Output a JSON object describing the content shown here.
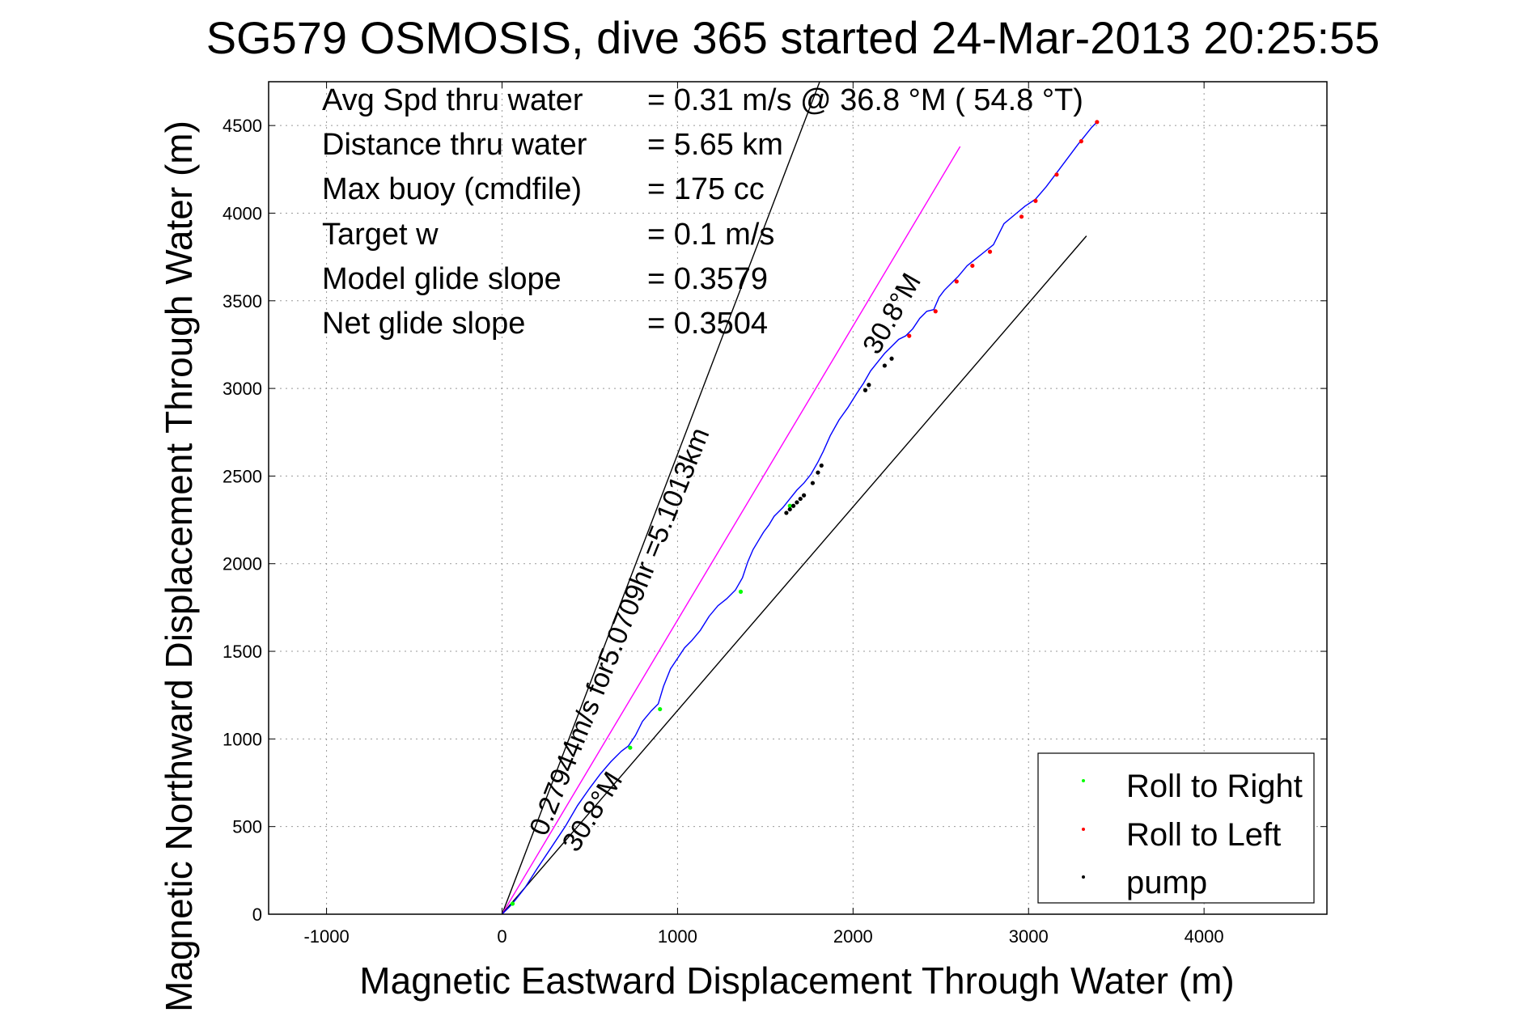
{
  "chart_data": {
    "type": "line",
    "title": "SG579 OSMOSIS, dive 365 started 24-Mar-2013 20:25:55",
    "xlabel": "Magnetic Eastward Displacement Through Water (m)",
    "ylabel": "Magnetic Northward Displacement Through Water (m)",
    "xlim": [
      -1330,
      4700
    ],
    "ylim": [
      0,
      4750
    ],
    "xticks": [
      -1000,
      0,
      1000,
      2000,
      3000,
      4000
    ],
    "yticks": [
      0,
      500,
      1000,
      1500,
      2000,
      2500,
      3000,
      3500,
      4000,
      4500
    ],
    "grid": true,
    "info_lines": [
      {
        "label": "Avg Spd thru water",
        "value": "=  0.31 m/s @  36.8 °M ( 54.8 °T)"
      },
      {
        "label": "Distance thru water",
        "value": "=  5.65 km"
      },
      {
        "label": "Max buoy (cmdfile)",
        "value": "= 175 cc"
      },
      {
        "label": "Target w",
        "value": "= 0.1 m/s"
      },
      {
        "label": "Model glide slope",
        "value": "= 0.3579"
      },
      {
        "label": "Net glide slope",
        "value": "= 0.3504"
      }
    ],
    "annotations": {
      "heading_top": "30.8°M",
      "heading_bottom": "30.8°M",
      "speed_text": "0.27944m/s for5.0709hr =5.1013km"
    },
    "reference_lines": [
      {
        "name": "left_bound",
        "color": "#000000",
        "x": [
          0,
          1810
        ],
        "y": [
          0,
          4750
        ]
      },
      {
        "name": "heading",
        "color": "#ff00ff",
        "x": [
          0,
          2610
        ],
        "y": [
          0,
          4380
        ]
      },
      {
        "name": "right_bound",
        "color": "#000000",
        "x": [
          0,
          3330
        ],
        "y": [
          0,
          3870
        ]
      }
    ],
    "track": {
      "color": "#0000ff",
      "x": [
        0,
        40,
        75,
        130,
        200,
        280,
        360,
        430,
        500,
        560,
        620,
        680,
        720,
        760,
        800,
        850,
        890,
        920,
        960,
        1000,
        1040,
        1080,
        1130,
        1180,
        1230,
        1280,
        1330,
        1370,
        1400,
        1430,
        1460,
        1490,
        1520,
        1550,
        1580,
        1600,
        1640,
        1680,
        1720,
        1760,
        1800,
        1830,
        1870,
        1920,
        1970,
        2020,
        2060,
        2100,
        2140,
        2180,
        2220,
        2260,
        2300,
        2340,
        2380,
        2420,
        2460,
        2490,
        2520,
        2560,
        2600,
        2650,
        2700,
        2750,
        2800,
        2860,
        2920,
        2980,
        3040,
        3100,
        3160,
        3220,
        3280,
        3320,
        3360,
        3390
      ],
      "y": [
        0,
        40,
        80,
        150,
        260,
        380,
        500,
        620,
        720,
        800,
        870,
        930,
        960,
        1020,
        1100,
        1160,
        1200,
        1300,
        1400,
        1460,
        1520,
        1560,
        1620,
        1700,
        1760,
        1800,
        1850,
        1920,
        2010,
        2080,
        2130,
        2180,
        2220,
        2270,
        2300,
        2320,
        2370,
        2420,
        2460,
        2510,
        2580,
        2640,
        2730,
        2820,
        2890,
        2970,
        3030,
        3100,
        3150,
        3200,
        3240,
        3280,
        3300,
        3340,
        3400,
        3440,
        3450,
        3520,
        3560,
        3600,
        3640,
        3700,
        3740,
        3780,
        3820,
        3940,
        3990,
        4040,
        4080,
        4150,
        4230,
        4310,
        4390,
        4440,
        4490,
        4520
      ]
    },
    "series": [
      {
        "name": "Roll to Right",
        "color": "#00ff00",
        "x": [
          60,
          730,
          900,
          1360,
          1640
        ],
        "y": [
          60,
          950,
          1170,
          1840,
          2330
        ]
      },
      {
        "name": "Roll to Left",
        "color": "#ff0000",
        "x": [
          2320,
          2470,
          2590,
          2680,
          2780,
          2960,
          3040,
          3160,
          3300,
          3390
        ],
        "y": [
          3300,
          3440,
          3610,
          3700,
          3780,
          3980,
          4070,
          4220,
          4410,
          4520
        ]
      },
      {
        "name": "pump",
        "color": "#000000",
        "x": [
          1620,
          1640,
          1660,
          1680,
          1700,
          1720,
          1770,
          1800,
          1820,
          2070,
          2090,
          2180,
          2220
        ],
        "y": [
          2290,
          2310,
          2330,
          2350,
          2370,
          2390,
          2460,
          2520,
          2560,
          2990,
          3020,
          3130,
          3170
        ]
      }
    ],
    "legend": {
      "position": "bottom-right",
      "entries": [
        {
          "label": "Roll to Right",
          "color": "#00ff00"
        },
        {
          "label": "Roll to Left",
          "color": "#ff0000"
        },
        {
          "label": "pump",
          "color": "#000000"
        }
      ]
    }
  }
}
